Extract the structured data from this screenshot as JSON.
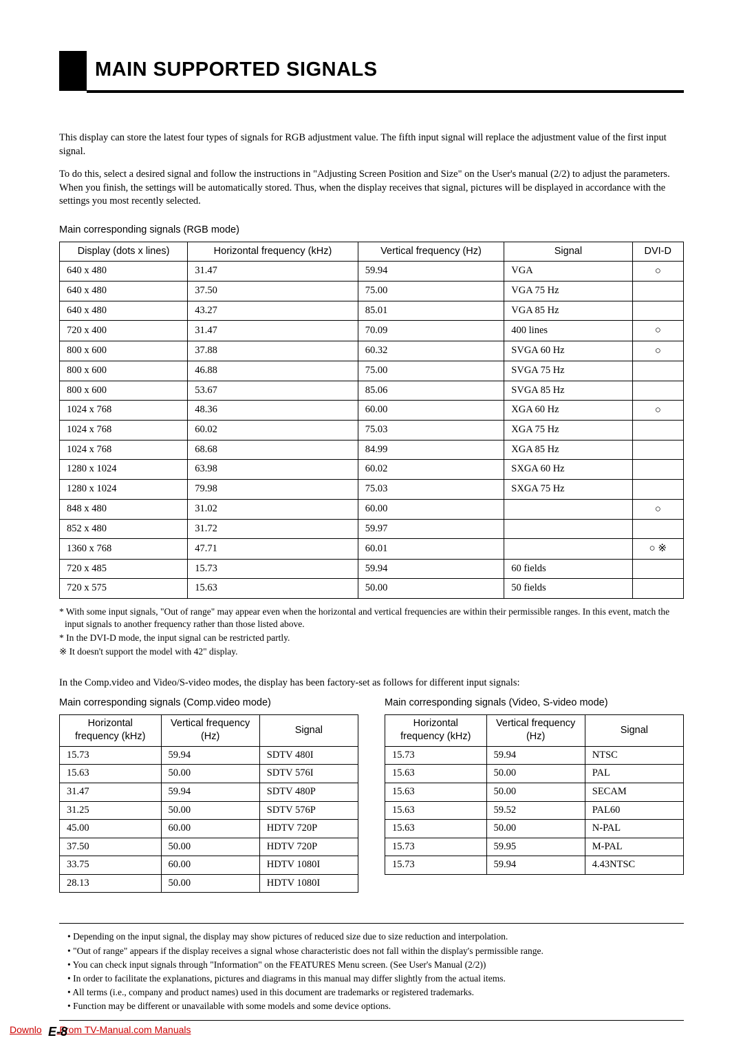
{
  "header": {
    "title": "MAIN SUPPORTED SIGNALS"
  },
  "intro": {
    "p1": "This display can store the latest four types of signals for RGB adjustment value. The fifth input signal will replace the adjustment value of the first input signal.",
    "p2": "To do this, select a desired signal and follow the instructions in \"Adjusting Screen Position and Size\" on the User's manual (2/2) to adjust the parameters.  When you finish, the settings will be automatically stored.  Thus, when the display receives that signal, pictures will be displayed in accordance with the settings you most recently selected."
  },
  "rgb_table": {
    "label": "Main corresponding signals (RGB mode)",
    "headers": {
      "display": "Display (dots x lines)",
      "hfreq": "Horizontal frequency (kHz)",
      "vfreq": "Vertical frequency (Hz)",
      "signal": "Signal",
      "dvid": "DVI-D"
    },
    "rows": [
      {
        "display": "640 x 480",
        "hfreq": "31.47",
        "vfreq": "59.94",
        "signal": "VGA",
        "dvid": "○"
      },
      {
        "display": "640 x 480",
        "hfreq": "37.50",
        "vfreq": "75.00",
        "signal": "VGA 75 Hz",
        "dvid": ""
      },
      {
        "display": "640 x 480",
        "hfreq": "43.27",
        "vfreq": "85.01",
        "signal": "VGA 85 Hz",
        "dvid": ""
      },
      {
        "display": "720 x 400",
        "hfreq": "31.47",
        "vfreq": "70.09",
        "signal": "400 lines",
        "dvid": "○"
      },
      {
        "display": "800 x 600",
        "hfreq": "37.88",
        "vfreq": "60.32",
        "signal": "SVGA 60 Hz",
        "dvid": "○"
      },
      {
        "display": "800 x 600",
        "hfreq": "46.88",
        "vfreq": "75.00",
        "signal": "SVGA 75 Hz",
        "dvid": ""
      },
      {
        "display": "800 x 600",
        "hfreq": "53.67",
        "vfreq": "85.06",
        "signal": "SVGA 85 Hz",
        "dvid": ""
      },
      {
        "display": "1024 x 768",
        "hfreq": "48.36",
        "vfreq": "60.00",
        "signal": "XGA 60 Hz",
        "dvid": "○"
      },
      {
        "display": "1024 x 768",
        "hfreq": "60.02",
        "vfreq": "75.03",
        "signal": "XGA 75 Hz",
        "dvid": ""
      },
      {
        "display": "1024 x 768",
        "hfreq": "68.68",
        "vfreq": "84.99",
        "signal": "XGA 85 Hz",
        "dvid": ""
      },
      {
        "display": "1280 x 1024",
        "hfreq": "63.98",
        "vfreq": "60.02",
        "signal": "SXGA 60 Hz",
        "dvid": ""
      },
      {
        "display": "1280 x 1024",
        "hfreq": "79.98",
        "vfreq": "75.03",
        "signal": "SXGA 75 Hz",
        "dvid": ""
      },
      {
        "display": "848 x 480",
        "hfreq": "31.02",
        "vfreq": "60.00",
        "signal": "",
        "dvid": "○"
      },
      {
        "display": "852 x 480",
        "hfreq": "31.72",
        "vfreq": "59.97",
        "signal": "",
        "dvid": ""
      },
      {
        "display": "1360 x 768",
        "hfreq": "47.71",
        "vfreq": "60.01",
        "signal": "",
        "dvid": "○ ※"
      },
      {
        "display": "720 x 485",
        "hfreq": "15.73",
        "vfreq": "59.94",
        "signal": "60 fields",
        "dvid": ""
      },
      {
        "display": "720 x 575",
        "hfreq": "15.63",
        "vfreq": "50.00",
        "signal": "50 fields",
        "dvid": ""
      }
    ]
  },
  "rgb_notes": {
    "n1": "* With some input signals, \"Out of range\" may appear even when the horizontal and vertical frequencies are within their permissible ranges.  In this event, match the input signals to another frequency rather than those listed above.",
    "n2": "*  In the DVI-D mode, the input signal can be restricted partly.",
    "n3": "※ It doesn't support the model with 42\" display."
  },
  "mid_text": "In the Comp.video and Video/S-video modes, the display has been factory-set as follows for different input signals:",
  "comp_table": {
    "label": "Main corresponding signals (Comp.video mode)",
    "headers": {
      "hfreq": "Horizontal frequency (kHz)",
      "vfreq": "Vertical frequency (Hz)",
      "signal": "Signal"
    },
    "rows": [
      {
        "hfreq": "15.73",
        "vfreq": "59.94",
        "signal": "SDTV 480I"
      },
      {
        "hfreq": "15.63",
        "vfreq": "50.00",
        "signal": "SDTV 576I"
      },
      {
        "hfreq": "31.47",
        "vfreq": "59.94",
        "signal": "SDTV 480P"
      },
      {
        "hfreq": "31.25",
        "vfreq": "50.00",
        "signal": "SDTV 576P"
      },
      {
        "hfreq": "45.00",
        "vfreq": "60.00",
        "signal": "HDTV 720P"
      },
      {
        "hfreq": "37.50",
        "vfreq": "50.00",
        "signal": "HDTV 720P"
      },
      {
        "hfreq": "33.75",
        "vfreq": "60.00",
        "signal": "HDTV 1080I"
      },
      {
        "hfreq": "28.13",
        "vfreq": "50.00",
        "signal": "HDTV 1080I"
      }
    ]
  },
  "video_table": {
    "label": "Main corresponding signals (Video, S-video mode)",
    "headers": {
      "hfreq": "Horizontal frequency (kHz)",
      "vfreq": "Vertical frequency (Hz)",
      "signal": "Signal"
    },
    "rows": [
      {
        "hfreq": "15.73",
        "vfreq": "59.94",
        "signal": "NTSC"
      },
      {
        "hfreq": "15.63",
        "vfreq": "50.00",
        "signal": "PAL"
      },
      {
        "hfreq": "15.63",
        "vfreq": "50.00",
        "signal": "SECAM"
      },
      {
        "hfreq": "15.63",
        "vfreq": "59.52",
        "signal": "PAL60"
      },
      {
        "hfreq": "15.63",
        "vfreq": "50.00",
        "signal": "N-PAL"
      },
      {
        "hfreq": "15.73",
        "vfreq": "59.95",
        "signal": "M-PAL"
      },
      {
        "hfreq": "15.73",
        "vfreq": "59.94",
        "signal": "4.43NTSC"
      }
    ]
  },
  "bullets": {
    "b1": "• Depending on the input signal, the display may show pictures of reduced size due to size reduction and interpolation.",
    "b2": "• \"Out of range\" appears if the display receives a signal whose characteristic does not fall within the display's permissible range.",
    "b3": "• You can check input signals through \"Information\" on the FEATURES Menu screen. (See User's Manual (2/2))",
    "b4": "• In order to facilitate the explanations, pictures and diagrams in this manual may differ slightly from the actual items.",
    "b5": "• All terms (i.e., company and product names) used in this document are trademarks or registered trademarks.",
    "b6": "• Function may be different or unavailable with some models and some device options."
  },
  "footer": {
    "link_pre": "Downlo",
    "link_post": " From TV-Manual.com Manuals",
    "page": "E-8"
  }
}
